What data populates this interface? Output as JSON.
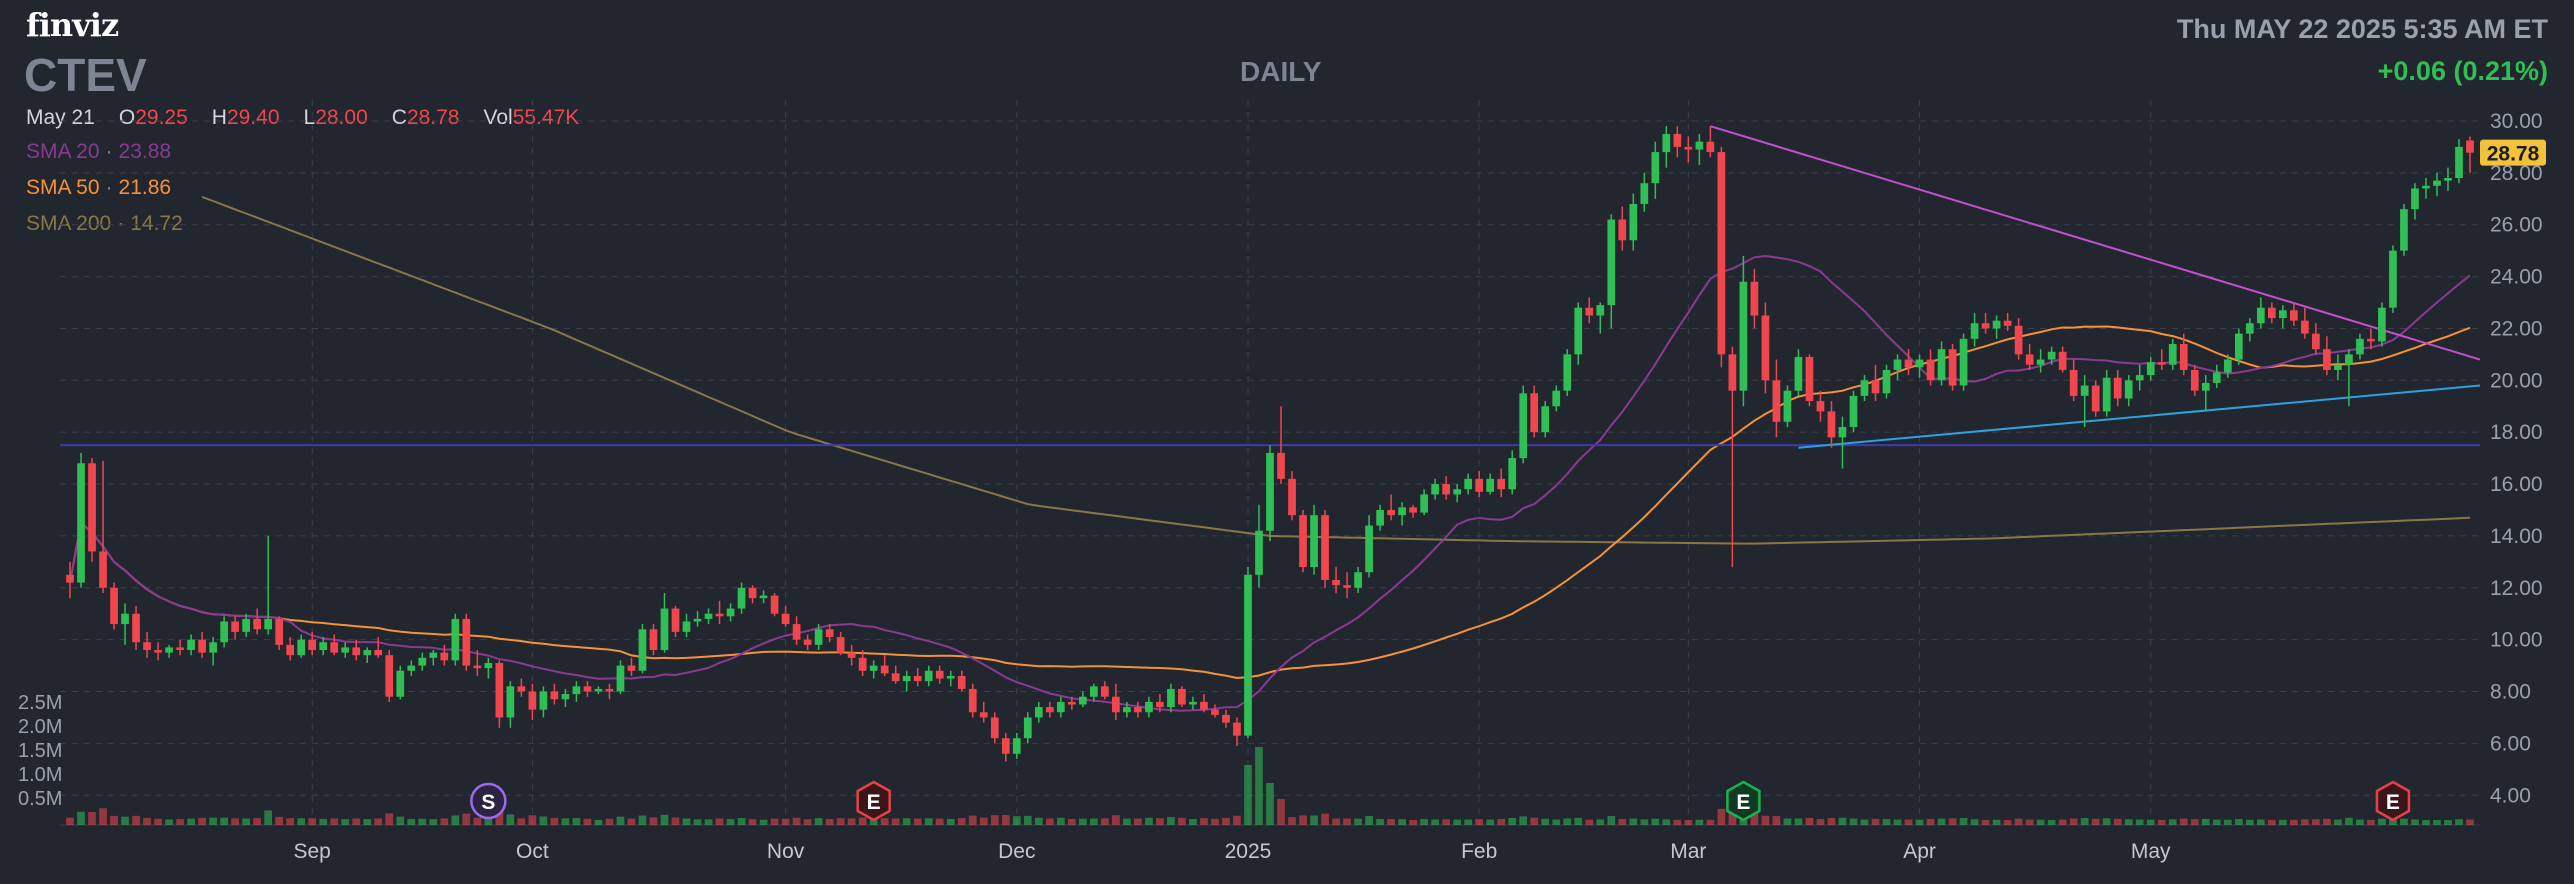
{
  "header": {
    "logo": "finviz",
    "ticker": "CTEV",
    "timeframe": "DAILY",
    "datetime": "Thu MAY 22 2025 5:35 AM ET",
    "change": "+0.06 (0.21%)"
  },
  "ohlc": {
    "date": "May 21",
    "o_label": "O",
    "o": "29.25",
    "h_label": "H",
    "h": "29.40",
    "l_label": "L",
    "l": "28.00",
    "c_label": "C",
    "c": "28.78",
    "vol_label": "Vol",
    "vol": "55.47K"
  },
  "indicators": {
    "sma20": {
      "label": "SMA 20",
      "value": "23.88",
      "color": "#8b3a93"
    },
    "sma50": {
      "label": "SMA 50",
      "value": "21.86",
      "color": "#f4923a"
    },
    "sma200": {
      "label": "SMA 200",
      "value": "14.72",
      "color": "#8a7748"
    }
  },
  "colors": {
    "up": "#2fbf55",
    "down": "#f0474f",
    "background": "#22262f",
    "grid": "#3a3f4b",
    "resistance": "#c44fd1",
    "support": "#2aa3e0",
    "horizontal": "#3c3ca8"
  },
  "chart_data": {
    "type": "candlestick",
    "title": "CTEV",
    "timeframe": "DAILY",
    "x_tick_labels": [
      "Sep",
      "Oct",
      "Nov",
      "Dec",
      "2025",
      "Feb",
      "Mar",
      "Apr",
      "May"
    ],
    "y_tick_labels": [
      "30.00",
      "28.00",
      "26.00",
      "24.00",
      "22.00",
      "20.00",
      "18.00",
      "16.00",
      "14.00",
      "12.00",
      "10.00",
      "8.00",
      "6.00",
      "4.00"
    ],
    "ylim": [
      3.2,
      30.5
    ],
    "volume_tick_labels": [
      "2.5M",
      "2.0M",
      "1.5M",
      "1.0M",
      "0.5M"
    ],
    "last_price_label": "28.78",
    "events": [
      {
        "label": "S",
        "type": "split",
        "index": 38
      },
      {
        "label": "E",
        "type": "earnings",
        "index": 73
      },
      {
        "label": "E",
        "type": "earnings",
        "index": 152
      },
      {
        "label": "E",
        "type": "earnings",
        "index": 211
      }
    ],
    "month_start_index": {
      "Sep": 22,
      "Oct": 42,
      "Nov": 65,
      "Dec": 86,
      "2025": 107,
      "Feb": 128,
      "Mar": 147,
      "Apr": 168,
      "May": 189
    },
    "candles": [
      [
        12.5,
        13.0,
        11.6,
        12.2
      ],
      [
        12.2,
        17.2,
        12.0,
        16.8
      ],
      [
        16.8,
        17.0,
        13.0,
        13.4
      ],
      [
        13.4,
        16.9,
        11.8,
        12.0
      ],
      [
        12.0,
        12.2,
        10.4,
        10.6
      ],
      [
        10.6,
        11.4,
        9.8,
        11.0
      ],
      [
        11.0,
        11.3,
        9.6,
        9.9
      ],
      [
        9.9,
        10.3,
        9.3,
        9.6
      ],
      [
        9.6,
        9.9,
        9.2,
        9.5
      ],
      [
        9.5,
        9.8,
        9.3,
        9.7
      ],
      [
        9.7,
        10.0,
        9.4,
        9.6
      ],
      [
        9.6,
        10.2,
        9.4,
        10.0
      ],
      [
        10.0,
        10.3,
        9.3,
        9.5
      ],
      [
        9.5,
        10.1,
        9.0,
        9.9
      ],
      [
        9.9,
        10.9,
        9.7,
        10.7
      ],
      [
        10.7,
        10.9,
        10.0,
        10.3
      ],
      [
        10.3,
        11.0,
        10.1,
        10.8
      ],
      [
        10.8,
        11.2,
        10.2,
        10.4
      ],
      [
        10.4,
        14.0,
        10.2,
        10.8
      ],
      [
        10.8,
        10.9,
        9.6,
        9.8
      ],
      [
        9.8,
        10.1,
        9.2,
        9.4
      ],
      [
        9.4,
        10.2,
        9.3,
        10.0
      ],
      [
        10.0,
        10.3,
        9.4,
        9.6
      ],
      [
        9.6,
        10.1,
        9.4,
        9.9
      ],
      [
        9.9,
        10.2,
        9.4,
        9.5
      ],
      [
        9.5,
        9.9,
        9.3,
        9.7
      ],
      [
        9.7,
        10.0,
        9.2,
        9.4
      ],
      [
        9.4,
        9.7,
        9.1,
        9.6
      ],
      [
        9.6,
        10.1,
        9.3,
        9.4
      ],
      [
        9.4,
        9.6,
        7.6,
        7.8
      ],
      [
        7.8,
        9.0,
        7.7,
        8.8
      ],
      [
        8.8,
        9.2,
        8.6,
        9.0
      ],
      [
        9.0,
        9.5,
        8.8,
        9.3
      ],
      [
        9.3,
        9.6,
        9.0,
        9.5
      ],
      [
        9.5,
        9.8,
        9.0,
        9.2
      ],
      [
        9.2,
        11.0,
        9.0,
        10.8
      ],
      [
        10.8,
        11.0,
        8.8,
        9.0
      ],
      [
        9.0,
        9.6,
        8.6,
        8.9
      ],
      [
        8.9,
        9.3,
        8.5,
        9.1
      ],
      [
        9.1,
        9.2,
        6.6,
        7.0
      ],
      [
        7.0,
        8.4,
        6.6,
        8.2
      ],
      [
        8.2,
        8.5,
        7.8,
        8.0
      ],
      [
        8.0,
        8.3,
        6.9,
        7.3
      ],
      [
        7.3,
        8.2,
        7.0,
        8.0
      ],
      [
        8.0,
        8.3,
        7.5,
        7.7
      ],
      [
        7.7,
        8.1,
        7.4,
        7.9
      ],
      [
        7.9,
        8.4,
        7.6,
        8.2
      ],
      [
        8.2,
        8.4,
        7.8,
        8.0
      ],
      [
        8.0,
        8.2,
        7.9,
        8.1
      ],
      [
        8.1,
        8.3,
        7.7,
        8.0
      ],
      [
        8.0,
        9.2,
        7.9,
        9.0
      ],
      [
        9.0,
        9.3,
        8.6,
        8.8
      ],
      [
        8.8,
        10.6,
        8.7,
        10.4
      ],
      [
        10.4,
        10.6,
        9.4,
        9.6
      ],
      [
        9.6,
        11.8,
        9.5,
        11.2
      ],
      [
        11.2,
        11.3,
        10.1,
        10.3
      ],
      [
        10.3,
        11.0,
        10.1,
        10.7
      ],
      [
        10.7,
        11.1,
        10.5,
        10.8
      ],
      [
        10.8,
        11.2,
        10.6,
        11.0
      ],
      [
        11.0,
        11.5,
        10.6,
        10.9
      ],
      [
        10.9,
        11.4,
        10.7,
        11.2
      ],
      [
        11.2,
        12.2,
        11.0,
        12.0
      ],
      [
        12.0,
        12.1,
        11.4,
        11.6
      ],
      [
        11.6,
        11.9,
        11.4,
        11.7
      ],
      [
        11.7,
        11.8,
        10.9,
        11.0
      ],
      [
        11.0,
        11.3,
        10.5,
        10.6
      ],
      [
        10.6,
        10.9,
        9.8,
        10.0
      ],
      [
        10.0,
        10.2,
        9.6,
        9.8
      ],
      [
        9.8,
        10.6,
        9.6,
        10.4
      ],
      [
        10.4,
        10.6,
        9.9,
        10.1
      ],
      [
        10.1,
        10.3,
        9.4,
        9.5
      ],
      [
        9.5,
        9.8,
        9.0,
        9.3
      ],
      [
        9.3,
        9.6,
        8.6,
        8.8
      ],
      [
        8.8,
        9.2,
        8.5,
        9.0
      ],
      [
        9.0,
        9.4,
        8.6,
        8.7
      ],
      [
        8.7,
        9.0,
        8.3,
        8.4
      ],
      [
        8.4,
        8.8,
        8.0,
        8.6
      ],
      [
        8.6,
        8.9,
        8.2,
        8.4
      ],
      [
        8.4,
        9.0,
        8.2,
        8.8
      ],
      [
        8.8,
        9.0,
        8.3,
        8.5
      ],
      [
        8.5,
        8.8,
        8.2,
        8.6
      ],
      [
        8.6,
        8.8,
        8.0,
        8.1
      ],
      [
        8.1,
        8.3,
        7.0,
        7.2
      ],
      [
        7.2,
        7.6,
        6.8,
        7.0
      ],
      [
        7.0,
        7.2,
        6.0,
        6.2
      ],
      [
        6.2,
        6.4,
        5.3,
        5.6
      ],
      [
        5.6,
        6.4,
        5.4,
        6.2
      ],
      [
        6.2,
        7.2,
        6.0,
        7.0
      ],
      [
        7.0,
        7.6,
        6.8,
        7.4
      ],
      [
        7.4,
        7.6,
        7.0,
        7.2
      ],
      [
        7.2,
        7.8,
        7.0,
        7.6
      ],
      [
        7.6,
        7.8,
        7.3,
        7.5
      ],
      [
        7.5,
        8.0,
        7.4,
        7.8
      ],
      [
        7.8,
        8.3,
        7.6,
        8.2
      ],
      [
        8.2,
        8.4,
        7.7,
        7.8
      ],
      [
        7.8,
        8.3,
        6.9,
        7.2
      ],
      [
        7.2,
        7.6,
        7.0,
        7.4
      ],
      [
        7.4,
        7.6,
        7.0,
        7.2
      ],
      [
        7.2,
        7.8,
        7.0,
        7.6
      ],
      [
        7.6,
        7.9,
        7.2,
        7.4
      ],
      [
        7.4,
        8.3,
        7.2,
        8.1
      ],
      [
        8.1,
        8.2,
        7.4,
        7.5
      ],
      [
        7.5,
        7.8,
        7.3,
        7.6
      ],
      [
        7.6,
        7.9,
        7.2,
        7.3
      ],
      [
        7.3,
        7.5,
        7.0,
        7.1
      ],
      [
        7.1,
        7.3,
        6.6,
        6.8
      ],
      [
        6.8,
        7.0,
        5.9,
        6.3
      ],
      [
        6.3,
        12.8,
        6.2,
        12.5
      ],
      [
        12.5,
        15.2,
        12.0,
        14.2
      ],
      [
        14.2,
        17.5,
        13.8,
        17.2
      ],
      [
        17.2,
        19.0,
        16.0,
        16.2
      ],
      [
        16.2,
        16.5,
        14.6,
        14.8
      ],
      [
        14.8,
        15.0,
        12.6,
        12.8
      ],
      [
        12.8,
        15.2,
        12.5,
        14.8
      ],
      [
        14.8,
        15.0,
        12.0,
        12.3
      ],
      [
        12.3,
        12.8,
        11.8,
        12.1
      ],
      [
        12.1,
        12.6,
        11.6,
        12.0
      ],
      [
        12.0,
        12.8,
        11.8,
        12.6
      ],
      [
        12.6,
        14.8,
        12.4,
        14.4
      ],
      [
        14.4,
        15.2,
        14.2,
        15.0
      ],
      [
        15.0,
        15.6,
        14.6,
        14.8
      ],
      [
        14.8,
        15.3,
        14.4,
        15.1
      ],
      [
        15.1,
        15.2,
        14.7,
        14.9
      ],
      [
        14.9,
        15.8,
        14.8,
        15.6
      ],
      [
        15.6,
        16.2,
        15.4,
        16.0
      ],
      [
        16.0,
        16.3,
        15.4,
        15.6
      ],
      [
        15.6,
        16.0,
        15.3,
        15.8
      ],
      [
        15.8,
        16.4,
        15.6,
        16.2
      ],
      [
        16.2,
        16.5,
        15.5,
        15.7
      ],
      [
        15.7,
        16.4,
        15.6,
        16.2
      ],
      [
        16.2,
        16.6,
        15.5,
        15.8
      ],
      [
        15.8,
        17.3,
        15.6,
        17.0
      ],
      [
        17.0,
        19.8,
        16.8,
        19.5
      ],
      [
        19.5,
        19.8,
        17.8,
        18.0
      ],
      [
        18.0,
        19.2,
        17.8,
        19.0
      ],
      [
        19.0,
        19.8,
        18.8,
        19.6
      ],
      [
        19.6,
        21.2,
        19.4,
        21.0
      ],
      [
        21.0,
        23.0,
        20.6,
        22.8
      ],
      [
        22.8,
        23.2,
        22.2,
        22.5
      ],
      [
        22.5,
        23.0,
        21.8,
        22.9
      ],
      [
        22.9,
        26.4,
        22.0,
        26.2
      ],
      [
        26.2,
        26.7,
        25.0,
        25.4
      ],
      [
        25.4,
        27.2,
        25.0,
        26.8
      ],
      [
        26.8,
        28.0,
        26.5,
        27.6
      ],
      [
        27.6,
        29.2,
        27.0,
        28.8
      ],
      [
        28.8,
        29.8,
        28.2,
        29.5
      ],
      [
        29.5,
        29.8,
        28.6,
        29.0
      ],
      [
        29.0,
        29.4,
        28.4,
        28.9
      ],
      [
        28.9,
        29.5,
        28.3,
        29.2
      ],
      [
        29.2,
        29.8,
        28.6,
        28.8
      ],
      [
        28.8,
        29.0,
        20.5,
        21.0
      ],
      [
        21.0,
        21.3,
        12.8,
        19.6
      ],
      [
        19.6,
        24.8,
        19.0,
        23.8
      ],
      [
        23.8,
        24.3,
        22.0,
        22.5
      ],
      [
        22.5,
        23.0,
        19.5,
        20.0
      ],
      [
        20.0,
        20.8,
        17.8,
        18.4
      ],
      [
        18.4,
        19.8,
        18.2,
        19.6
      ],
      [
        19.6,
        21.2,
        19.4,
        20.9
      ],
      [
        20.9,
        21.0,
        19.0,
        19.2
      ],
      [
        19.2,
        19.6,
        18.4,
        18.8
      ],
      [
        18.8,
        19.2,
        17.4,
        17.8
      ],
      [
        17.8,
        18.6,
        16.6,
        18.2
      ],
      [
        18.2,
        19.6,
        18.0,
        19.4
      ],
      [
        19.4,
        20.2,
        19.2,
        20.0
      ],
      [
        20.0,
        20.6,
        19.2,
        19.5
      ],
      [
        19.5,
        20.6,
        19.3,
        20.4
      ],
      [
        20.4,
        21.0,
        20.0,
        20.8
      ],
      [
        20.8,
        21.2,
        20.2,
        20.5
      ],
      [
        20.5,
        21.0,
        20.1,
        20.8
      ],
      [
        20.8,
        21.2,
        19.8,
        20.0
      ],
      [
        20.0,
        21.5,
        19.8,
        21.2
      ],
      [
        21.2,
        21.4,
        19.6,
        19.8
      ],
      [
        19.8,
        21.8,
        19.6,
        21.6
      ],
      [
        21.6,
        22.6,
        21.3,
        22.2
      ],
      [
        22.2,
        22.6,
        21.8,
        22.0
      ],
      [
        22.0,
        22.5,
        21.6,
        22.3
      ],
      [
        22.3,
        22.6,
        21.9,
        22.1
      ],
      [
        22.1,
        22.4,
        20.8,
        21.0
      ],
      [
        21.0,
        21.4,
        20.4,
        20.6
      ],
      [
        20.6,
        21.2,
        20.3,
        20.8
      ],
      [
        20.8,
        21.3,
        20.6,
        21.1
      ],
      [
        21.1,
        21.3,
        20.3,
        20.4
      ],
      [
        20.4,
        20.8,
        19.2,
        19.4
      ],
      [
        19.4,
        20.2,
        18.2,
        19.8
      ],
      [
        19.8,
        20.0,
        18.6,
        18.8
      ],
      [
        18.8,
        20.4,
        18.6,
        20.1
      ],
      [
        20.1,
        20.4,
        19.0,
        19.3
      ],
      [
        19.3,
        20.2,
        19.0,
        20.0
      ],
      [
        20.0,
        20.6,
        19.6,
        20.2
      ],
      [
        20.2,
        20.9,
        20.0,
        20.7
      ],
      [
        20.7,
        21.2,
        20.4,
        20.6
      ],
      [
        20.6,
        21.6,
        20.4,
        21.4
      ],
      [
        21.4,
        21.8,
        20.2,
        20.4
      ],
      [
        20.4,
        20.6,
        19.4,
        19.6
      ],
      [
        19.6,
        20.2,
        18.8,
        19.9
      ],
      [
        19.9,
        20.6,
        19.7,
        20.3
      ],
      [
        20.3,
        21.0,
        20.1,
        20.8
      ],
      [
        20.8,
        22.0,
        20.6,
        21.8
      ],
      [
        21.8,
        22.4,
        21.5,
        22.2
      ],
      [
        22.2,
        23.2,
        22.0,
        22.8
      ],
      [
        22.8,
        23.0,
        22.2,
        22.4
      ],
      [
        22.4,
        22.9,
        22.0,
        22.7
      ],
      [
        22.7,
        23.0,
        22.1,
        22.3
      ],
      [
        22.3,
        22.8,
        21.6,
        21.8
      ],
      [
        21.8,
        22.2,
        21.0,
        21.2
      ],
      [
        21.2,
        21.7,
        20.2,
        20.4
      ],
      [
        20.4,
        21.0,
        20.0,
        20.6
      ],
      [
        20.6,
        21.2,
        19.0,
        21.0
      ],
      [
        21.0,
        21.8,
        20.8,
        21.6
      ],
      [
        21.6,
        22.0,
        21.2,
        21.5
      ],
      [
        21.5,
        23.0,
        21.3,
        22.8
      ],
      [
        22.8,
        25.2,
        22.6,
        25.0
      ],
      [
        25.0,
        26.8,
        24.8,
        26.6
      ],
      [
        26.6,
        27.6,
        26.2,
        27.4
      ],
      [
        27.4,
        27.8,
        27.0,
        27.5
      ],
      [
        27.5,
        28.0,
        27.1,
        27.7
      ],
      [
        27.7,
        28.2,
        27.3,
        27.8
      ],
      [
        27.8,
        29.3,
        27.6,
        29.0
      ],
      [
        29.25,
        29.4,
        28.0,
        28.78
      ]
    ]
  }
}
